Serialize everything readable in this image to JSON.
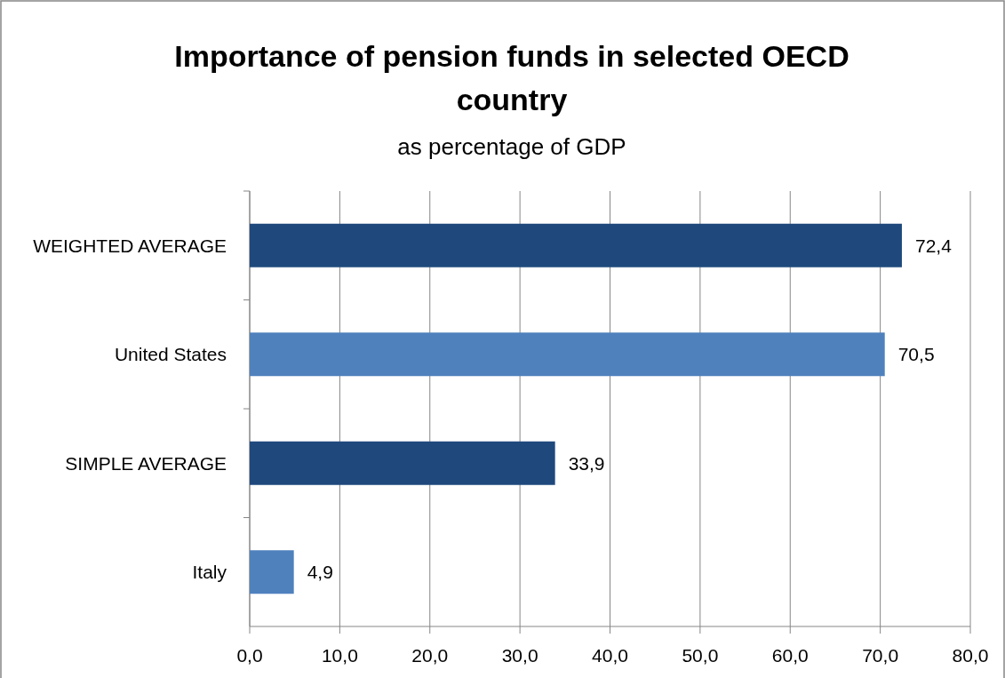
{
  "chart_data": {
    "type": "bar",
    "orientation": "horizontal",
    "title": "Importance of pension funds in selected OECD country",
    "subtitle": "as percentage of GDP",
    "categories": [
      "WEIGHTED AVERAGE",
      "United States",
      "SIMPLE AVERAGE",
      "Italy"
    ],
    "values": [
      72.4,
      70.5,
      33.9,
      4.9
    ],
    "colors": [
      "#1f497d",
      "#4f81bd",
      "#1f497d",
      "#4f81bd"
    ],
    "value_labels": [
      "72,4",
      "70,5",
      "33,9",
      "4,9"
    ],
    "xlim": [
      0,
      80
    ],
    "xticks": [
      {
        "value": 0,
        "label": "0,0"
      },
      {
        "value": 10,
        "label": "10,0"
      },
      {
        "value": 20,
        "label": "20,0"
      },
      {
        "value": 30,
        "label": "30,0"
      },
      {
        "value": 40,
        "label": "40,0"
      },
      {
        "value": 50,
        "label": "50,0"
      },
      {
        "value": 60,
        "label": "60,0"
      },
      {
        "value": 70,
        "label": "70,0"
      },
      {
        "value": 80,
        "label": "80,0"
      }
    ],
    "grid": "x"
  }
}
